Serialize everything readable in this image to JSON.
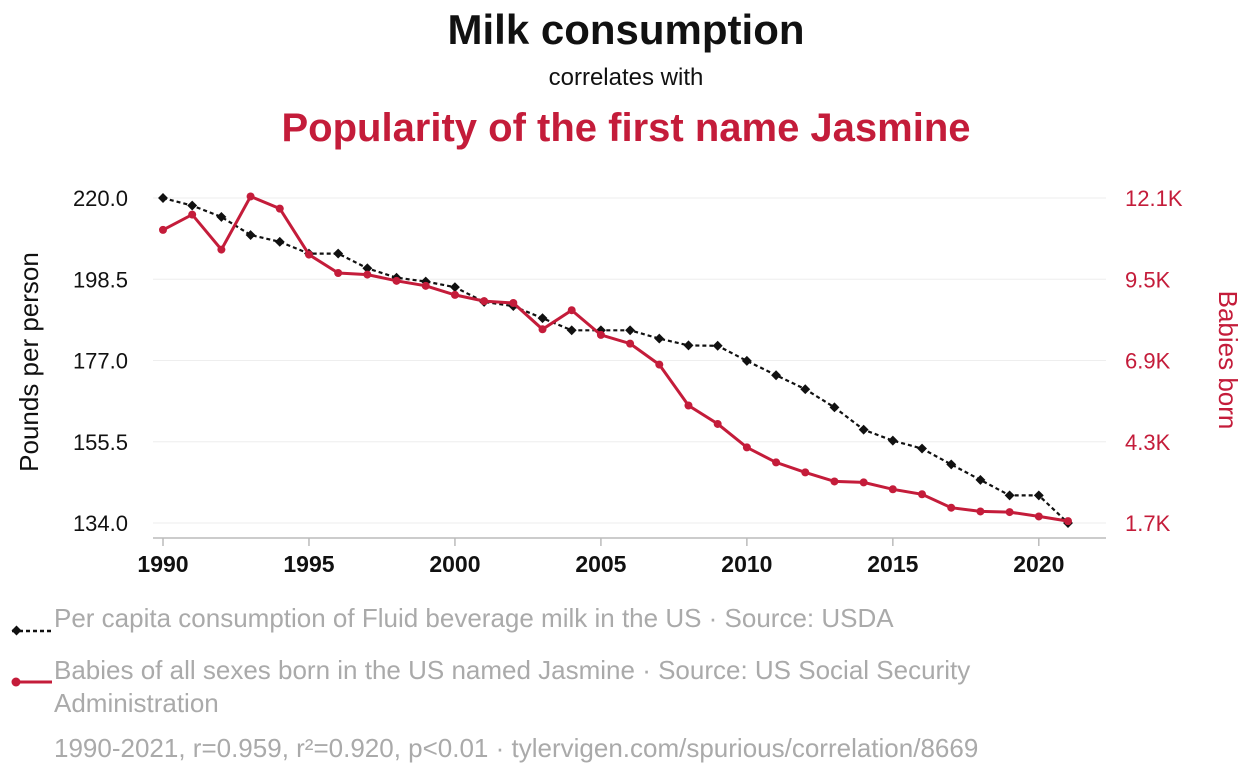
{
  "colors": {
    "series1": "#111111",
    "series2": "#c41c3a",
    "grid": "#eeeeee",
    "legend_text": "#aaaaaa"
  },
  "legend": [
    {
      "text": "Per capita consumption of Fluid beverage milk in the US · Source: USDA"
    },
    {
      "text": "Babies of all sexes born in the US named Jasmine · Source: US Social Security Administration"
    }
  ],
  "footer": "1990-2021, r=0.959, r²=0.920, p<0.01 · tylervigen.com/spurious/correlation/8669",
  "chart_data": {
    "type": "line",
    "title": "Milk consumption",
    "subtitle": "correlates with",
    "title2": "Popularity of the first name Jasmine",
    "ylabel": "Pounds per person",
    "ylabel_right": "Babies born",
    "grid": true,
    "legend_position": "bottom",
    "x": [
      1990,
      1991,
      1992,
      1993,
      1994,
      1995,
      1996,
      1997,
      1998,
      1999,
      2000,
      2001,
      2002,
      2003,
      2004,
      2005,
      2006,
      2007,
      2008,
      2009,
      2010,
      2011,
      2012,
      2013,
      2014,
      2015,
      2016,
      2017,
      2018,
      2019,
      2020,
      2021
    ],
    "xticks": [
      "1990",
      "1995",
      "2000",
      "2005",
      "2010",
      "2015",
      "2020"
    ],
    "xlim": [
      1990,
      2021
    ],
    "yticks_left": [
      "220.0",
      "198.5",
      "177.0",
      "155.5",
      "134.0"
    ],
    "ylim_left": [
      134.0,
      220.0
    ],
    "yticks_right": [
      "12.1K",
      "9.5K",
      "6.9K",
      "4.3K",
      "1.7K"
    ],
    "ylim_right": [
      1700,
      12100
    ],
    "series": [
      {
        "name": "Per capita consumption of Fluid beverage milk in the US",
        "axis": "left",
        "style": "dotted-diamond",
        "values": [
          220.0,
          218.0,
          215.0,
          210.2,
          208.4,
          205.3,
          205.3,
          201.4,
          198.9,
          197.9,
          196.4,
          192.5,
          191.4,
          188.2,
          185.0,
          185.0,
          185.0,
          182.8,
          181.0,
          180.9,
          176.9,
          173.1,
          169.4,
          164.6,
          158.7,
          155.8,
          153.7,
          149.5,
          145.4,
          141.3,
          141.3,
          134.0
        ]
      },
      {
        "name": "Babies of all sexes born in the US named Jasmine",
        "axis": "right",
        "style": "solid-circle",
        "values": [
          11080,
          11570,
          10450,
          12150,
          11760,
          10290,
          9700,
          9650,
          9450,
          9290,
          9000,
          8800,
          8740,
          7900,
          8510,
          7720,
          7440,
          6770,
          5460,
          4870,
          4120,
          3640,
          3320,
          3030,
          3000,
          2780,
          2620,
          2190,
          2070,
          2050,
          1910,
          1760
        ]
      }
    ]
  }
}
